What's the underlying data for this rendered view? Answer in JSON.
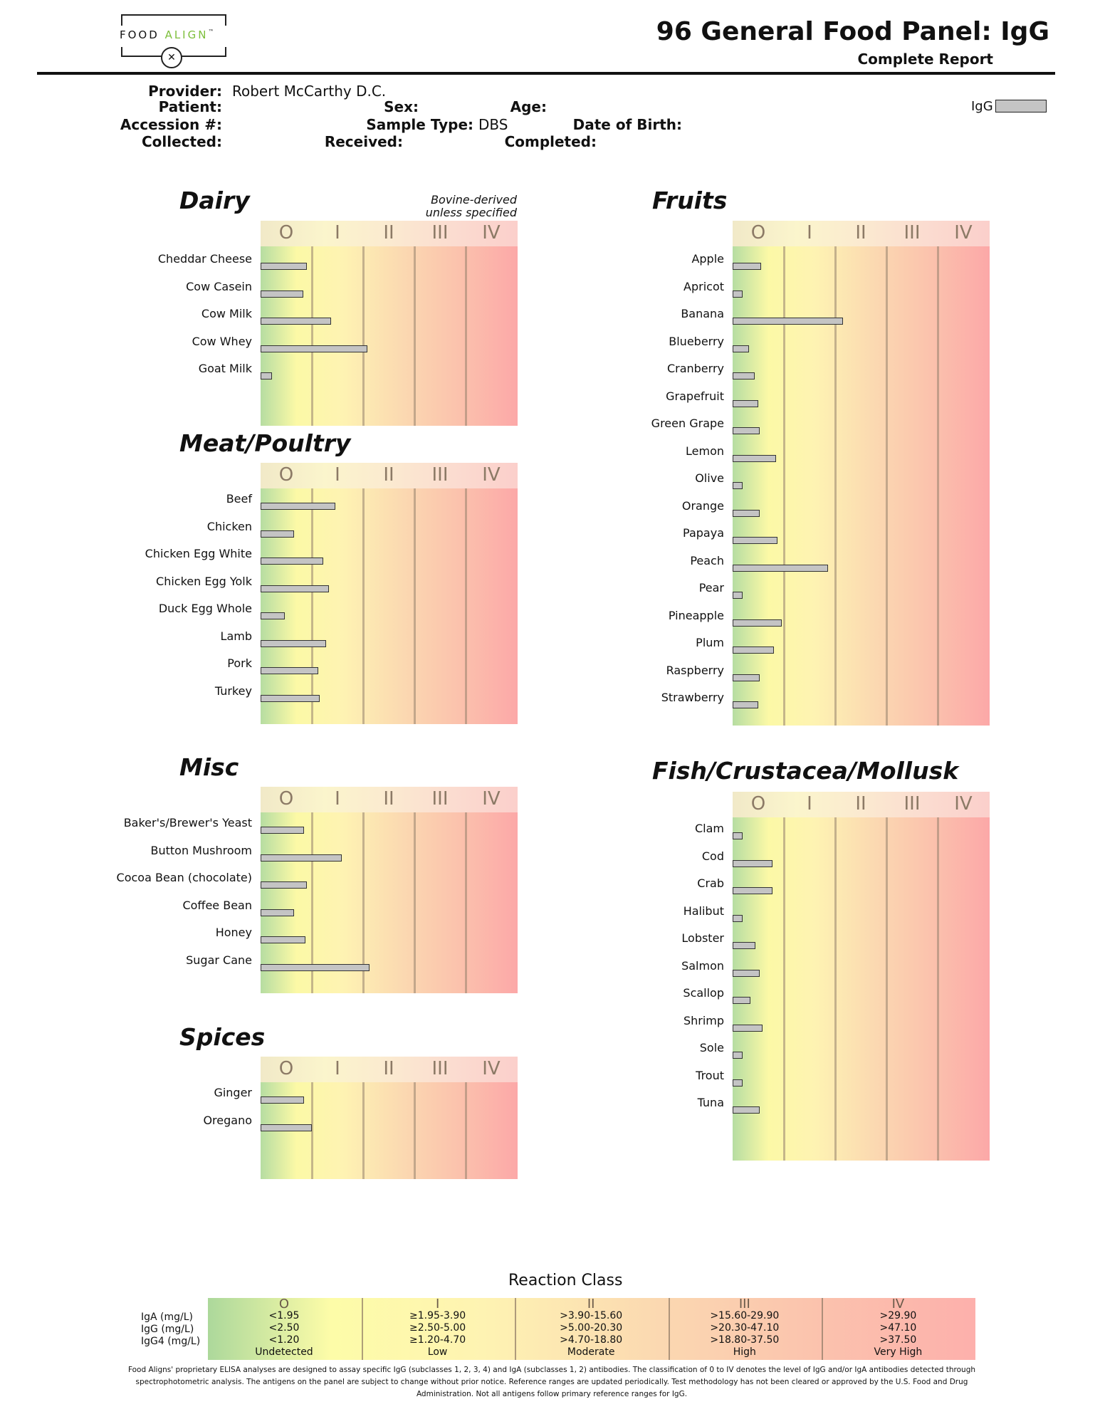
{
  "logo": {
    "word1": "FOOD ",
    "word2": "ALIGN",
    "tm": "™",
    "icon": "fork-knife-icon"
  },
  "header": {
    "title": "96 General Food Panel: IgG",
    "subtitle": "Complete Report"
  },
  "patient_info": {
    "provider_label": "Provider:",
    "provider_value": "Robert McCarthy D.C.",
    "patient_label": "Patient:",
    "sex_label": "Sex:",
    "age_label": "Age:",
    "accession_label": "Accession #:",
    "sample_type_label": "Sample Type:",
    "sample_type_value": "DBS",
    "dob_label": "Date of Birth:",
    "collected_label": "Collected:",
    "received_label": "Received:",
    "completed_label": "Completed:"
  },
  "legend": {
    "igg_label": "IgG",
    "swatch_color": "#c4c4c4"
  },
  "class_labels": [
    "O",
    "I",
    "II",
    "III",
    "IV"
  ],
  "sections": [
    {
      "key": "dairy",
      "title": "Dairy",
      "note_line1": "Bovine-derived",
      "note_line2": "unless specified",
      "items": [
        {
          "name": "Cheddar Cheese",
          "fill": 0.18
        },
        {
          "name": "Cow Casein",
          "fill": 0.165
        },
        {
          "name": "Cow Milk",
          "fill": 0.275
        },
        {
          "name": "Cow Whey",
          "fill": 0.415
        },
        {
          "name": "Goat Milk",
          "fill": 0.045
        }
      ]
    },
    {
      "key": "meat",
      "title": "Meat/Poultry",
      "items": [
        {
          "name": "Beef",
          "fill": 0.29
        },
        {
          "name": "Chicken",
          "fill": 0.13
        },
        {
          "name": "Chicken Egg White",
          "fill": 0.245
        },
        {
          "name": "Chicken Egg Yolk",
          "fill": 0.265
        },
        {
          "name": "Duck Egg Whole",
          "fill": 0.095
        },
        {
          "name": "Lamb",
          "fill": 0.255
        },
        {
          "name": "Pork",
          "fill": 0.225
        },
        {
          "name": "Turkey",
          "fill": 0.23
        }
      ]
    },
    {
      "key": "misc",
      "title": "Misc",
      "items": [
        {
          "name": "Baker's/Brewer's Yeast",
          "fill": 0.17
        },
        {
          "name": "Button Mushroom",
          "fill": 0.315
        },
        {
          "name": "Cocoa Bean (chocolate)",
          "fill": 0.18
        },
        {
          "name": "Coffee Bean",
          "fill": 0.13
        },
        {
          "name": "Honey",
          "fill": 0.175
        },
        {
          "name": "Sugar Cane",
          "fill": 0.425
        }
      ]
    },
    {
      "key": "spices",
      "title": "Spices",
      "items": [
        {
          "name": "Ginger",
          "fill": 0.17
        },
        {
          "name": "Oregano",
          "fill": 0.2
        }
      ]
    },
    {
      "key": "fruits",
      "title": "Fruits",
      "items": [
        {
          "name": "Apple",
          "fill": 0.11
        },
        {
          "name": "Apricot",
          "fill": 0.04
        },
        {
          "name": "Banana",
          "fill": 0.43
        },
        {
          "name": "Blueberry",
          "fill": 0.065
        },
        {
          "name": "Cranberry",
          "fill": 0.085
        },
        {
          "name": "Grapefruit",
          "fill": 0.1
        },
        {
          "name": "Green Grape",
          "fill": 0.105
        },
        {
          "name": "Lemon",
          "fill": 0.17
        },
        {
          "name": "Olive",
          "fill": 0.04
        },
        {
          "name": "Orange",
          "fill": 0.105
        },
        {
          "name": "Papaya",
          "fill": 0.175
        },
        {
          "name": "Peach",
          "fill": 0.37
        },
        {
          "name": "Pear",
          "fill": 0.04
        },
        {
          "name": "Pineapple",
          "fill": 0.19
        },
        {
          "name": "Plum",
          "fill": 0.16
        },
        {
          "name": "Raspberry",
          "fill": 0.105
        },
        {
          "name": "Strawberry",
          "fill": 0.1
        }
      ]
    },
    {
      "key": "fish",
      "title": "Fish/Crustacea/Mollusk",
      "items": [
        {
          "name": "Clam",
          "fill": 0.04
        },
        {
          "name": "Cod",
          "fill": 0.155
        },
        {
          "name": "Crab",
          "fill": 0.155
        },
        {
          "name": "Halibut",
          "fill": 0.04
        },
        {
          "name": "Lobster",
          "fill": 0.09
        },
        {
          "name": "Salmon",
          "fill": 0.105
        },
        {
          "name": "Scallop",
          "fill": 0.07
        },
        {
          "name": "Shrimp",
          "fill": 0.115
        },
        {
          "name": "Sole",
          "fill": 0.04
        },
        {
          "name": "Trout",
          "fill": 0.04
        },
        {
          "name": "Tuna",
          "fill": 0.105
        }
      ]
    }
  ],
  "reaction_class": {
    "title": "Reaction Class",
    "row_labels": [
      "IgA (mg/L)",
      "IgG (mg/L)",
      "IgG4 (mg/L)"
    ],
    "classes": [
      {
        "roman": "O",
        "iga": "<1.95",
        "igg": "<2.50",
        "igg4": "<1.20",
        "label": "Undetected"
      },
      {
        "roman": "I",
        "iga": "≥1.95-3.90",
        "igg": "≥2.50-5.00",
        "igg4": "≥1.20-4.70",
        "label": "Low"
      },
      {
        "roman": "II",
        "iga": ">3.90-15.60",
        "igg": ">5.00-20.30",
        "igg4": ">4.70-18.80",
        "label": "Moderate"
      },
      {
        "roman": "III",
        "iga": ">15.60-29.90",
        "igg": ">20.30-47.10",
        "igg4": ">18.80-37.50",
        "label": "High"
      },
      {
        "roman": "IV",
        "iga": ">29.90",
        "igg": ">47.10",
        "igg4": ">37.50",
        "label": "Very High"
      }
    ]
  },
  "footnote": "Food Aligns' proprietary ELISA analyses are designed to assay specific IgG (subclasses 1, 2, 3, 4) and IgA (subclasses 1, 2) antibodies. The classification of 0 to IV denotes the level of IgG and/or IgA antibodies detected through spectrophotometric analysis. The antigens on the panel are subject to change without prior notice. Reference ranges are updated periodically. Test methodology has not been cleared or approved by the U.S. Food and Drug Administration. Not all antigens follow primary reference ranges for IgG."
}
